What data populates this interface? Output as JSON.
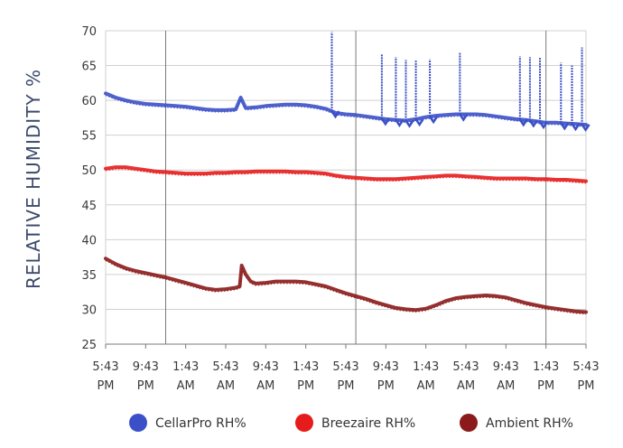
{
  "chart_data": {
    "type": "line",
    "title": "",
    "xlabel": "",
    "ylabel": "RELATIVE HUMIDITY %",
    "ylim": [
      25,
      70
    ],
    "yticks": [
      25,
      30,
      35,
      40,
      45,
      50,
      55,
      60,
      65,
      70
    ],
    "x_range_hours": [
      0,
      48
    ],
    "x_tick_hours": [
      0,
      4,
      8,
      12,
      16,
      20,
      24,
      28,
      32,
      36,
      40,
      44,
      48
    ],
    "x_tick_labels": [
      {
        "time": "5:43",
        "ampm": "PM"
      },
      {
        "time": "9:43",
        "ampm": "PM"
      },
      {
        "time": "1:43",
        "ampm": "AM"
      },
      {
        "time": "5:43",
        "ampm": "AM"
      },
      {
        "time": "9:43",
        "ampm": "AM"
      },
      {
        "time": "1:43",
        "ampm": "PM"
      },
      {
        "time": "5:43",
        "ampm": "PM"
      },
      {
        "time": "9:43",
        "ampm": "PM"
      },
      {
        "time": "1:43",
        "ampm": "AM"
      },
      {
        "time": "5:43",
        "ampm": "AM"
      },
      {
        "time": "9:43",
        "ampm": "AM"
      },
      {
        "time": "1:43",
        "ampm": "PM"
      },
      {
        "time": "5:43",
        "ampm": "PM"
      }
    ],
    "vertical_gridline_hours": [
      6,
      25,
      44
    ],
    "grid": true,
    "legend_position": "bottom",
    "series": [
      {
        "name": "CellarPro RH%",
        "color": "#3b50c8",
        "points": [
          [
            0,
            61.0
          ],
          [
            1,
            60.4
          ],
          [
            2,
            60.0
          ],
          [
            3,
            59.7
          ],
          [
            4,
            59.5
          ],
          [
            5,
            59.4
          ],
          [
            6,
            59.3
          ],
          [
            7,
            59.2
          ],
          [
            8,
            59.1
          ],
          [
            9,
            58.9
          ],
          [
            10,
            58.7
          ],
          [
            11,
            58.6
          ],
          [
            12,
            58.6
          ],
          [
            13,
            58.7
          ],
          [
            13.5,
            60.4
          ],
          [
            14,
            58.9
          ],
          [
            15,
            59.0
          ],
          [
            16,
            59.2
          ],
          [
            17,
            59.3
          ],
          [
            18,
            59.4
          ],
          [
            19,
            59.4
          ],
          [
            20,
            59.3
          ],
          [
            21,
            59.1
          ],
          [
            22,
            58.8
          ],
          [
            22.5,
            58.5
          ],
          [
            23,
            58.2
          ],
          [
            24,
            58.0
          ],
          [
            25,
            57.9
          ],
          [
            26,
            57.7
          ],
          [
            27,
            57.5
          ],
          [
            28,
            57.3
          ],
          [
            29,
            57.2
          ],
          [
            30,
            57.1
          ],
          [
            31,
            57.3
          ],
          [
            32,
            57.6
          ],
          [
            33,
            57.8
          ],
          [
            34,
            57.9
          ],
          [
            35,
            58.0
          ],
          [
            36,
            58.0
          ],
          [
            37,
            58.0
          ],
          [
            38,
            57.9
          ],
          [
            39,
            57.7
          ],
          [
            40,
            57.5
          ],
          [
            41,
            57.3
          ],
          [
            42,
            57.2
          ],
          [
            43,
            57.0
          ],
          [
            44,
            56.8
          ],
          [
            45,
            56.8
          ],
          [
            46,
            56.7
          ],
          [
            47,
            56.6
          ],
          [
            48,
            56.5
          ]
        ],
        "spikes": [
          {
            "hour": 22.6,
            "value": 69.8
          },
          {
            "hour": 27.6,
            "value": 66.6
          },
          {
            "hour": 29.0,
            "value": 66.2
          },
          {
            "hour": 30.0,
            "value": 65.8
          },
          {
            "hour": 31.0,
            "value": 65.7
          },
          {
            "hour": 32.4,
            "value": 65.9
          },
          {
            "hour": 35.4,
            "value": 66.8
          },
          {
            "hour": 41.4,
            "value": 66.3
          },
          {
            "hour": 42.4,
            "value": 66.2
          },
          {
            "hour": 43.4,
            "value": 66.1
          },
          {
            "hour": 45.5,
            "value": 65.4
          },
          {
            "hour": 46.6,
            "value": 65.0
          },
          {
            "hour": 47.6,
            "value": 67.6
          }
        ]
      },
      {
        "name": "Breezaire RH%",
        "color": "#e61c1c",
        "points": [
          [
            0,
            50.2
          ],
          [
            1,
            50.4
          ],
          [
            2,
            50.4
          ],
          [
            3,
            50.2
          ],
          [
            4,
            50.0
          ],
          [
            5,
            49.8
          ],
          [
            6,
            49.7
          ],
          [
            7,
            49.6
          ],
          [
            8,
            49.5
          ],
          [
            9,
            49.5
          ],
          [
            10,
            49.5
          ],
          [
            11,
            49.6
          ],
          [
            12,
            49.6
          ],
          [
            13,
            49.7
          ],
          [
            14,
            49.7
          ],
          [
            15,
            49.8
          ],
          [
            16,
            49.8
          ],
          [
            17,
            49.8
          ],
          [
            18,
            49.8
          ],
          [
            19,
            49.7
          ],
          [
            20,
            49.7
          ],
          [
            21,
            49.6
          ],
          [
            22,
            49.5
          ],
          [
            23,
            49.2
          ],
          [
            24,
            49.0
          ],
          [
            25,
            48.9
          ],
          [
            26,
            48.8
          ],
          [
            27,
            48.7
          ],
          [
            28,
            48.7
          ],
          [
            29,
            48.7
          ],
          [
            30,
            48.8
          ],
          [
            31,
            48.9
          ],
          [
            32,
            49.0
          ],
          [
            33,
            49.1
          ],
          [
            34,
            49.2
          ],
          [
            35,
            49.2
          ],
          [
            36,
            49.1
          ],
          [
            37,
            49.0
          ],
          [
            38,
            48.9
          ],
          [
            39,
            48.8
          ],
          [
            40,
            48.8
          ],
          [
            41,
            48.8
          ],
          [
            42,
            48.8
          ],
          [
            43,
            48.7
          ],
          [
            44,
            48.7
          ],
          [
            45,
            48.6
          ],
          [
            46,
            48.6
          ],
          [
            47,
            48.5
          ],
          [
            48,
            48.4
          ]
        ]
      },
      {
        "name": "Ambient RH%",
        "color": "#8b1a1a",
        "points": [
          [
            0,
            37.3
          ],
          [
            1,
            36.5
          ],
          [
            2,
            35.9
          ],
          [
            3,
            35.5
          ],
          [
            4,
            35.2
          ],
          [
            5,
            34.9
          ],
          [
            6,
            34.6
          ],
          [
            7,
            34.2
          ],
          [
            8,
            33.8
          ],
          [
            9,
            33.4
          ],
          [
            10,
            33.0
          ],
          [
            11,
            32.8
          ],
          [
            12,
            32.9
          ],
          [
            13,
            33.1
          ],
          [
            13.4,
            33.3
          ],
          [
            13.6,
            36.3
          ],
          [
            14,
            35.0
          ],
          [
            14.5,
            34.0
          ],
          [
            15,
            33.7
          ],
          [
            16,
            33.8
          ],
          [
            17,
            34.0
          ],
          [
            18,
            34.0
          ],
          [
            19,
            34.0
          ],
          [
            20,
            33.9
          ],
          [
            21,
            33.6
          ],
          [
            22,
            33.3
          ],
          [
            23,
            32.8
          ],
          [
            24,
            32.3
          ],
          [
            25,
            31.9
          ],
          [
            26,
            31.5
          ],
          [
            27,
            31.0
          ],
          [
            28,
            30.6
          ],
          [
            29,
            30.2
          ],
          [
            30,
            30.0
          ],
          [
            31,
            29.9
          ],
          [
            32,
            30.1
          ],
          [
            33,
            30.6
          ],
          [
            34,
            31.2
          ],
          [
            35,
            31.6
          ],
          [
            36,
            31.8
          ],
          [
            37,
            31.9
          ],
          [
            38,
            32.0
          ],
          [
            39,
            31.9
          ],
          [
            40,
            31.7
          ],
          [
            41,
            31.3
          ],
          [
            42,
            30.9
          ],
          [
            43,
            30.6
          ],
          [
            44,
            30.3
          ],
          [
            45,
            30.1
          ],
          [
            46,
            29.9
          ],
          [
            47,
            29.7
          ],
          [
            48,
            29.6
          ]
        ]
      }
    ]
  }
}
